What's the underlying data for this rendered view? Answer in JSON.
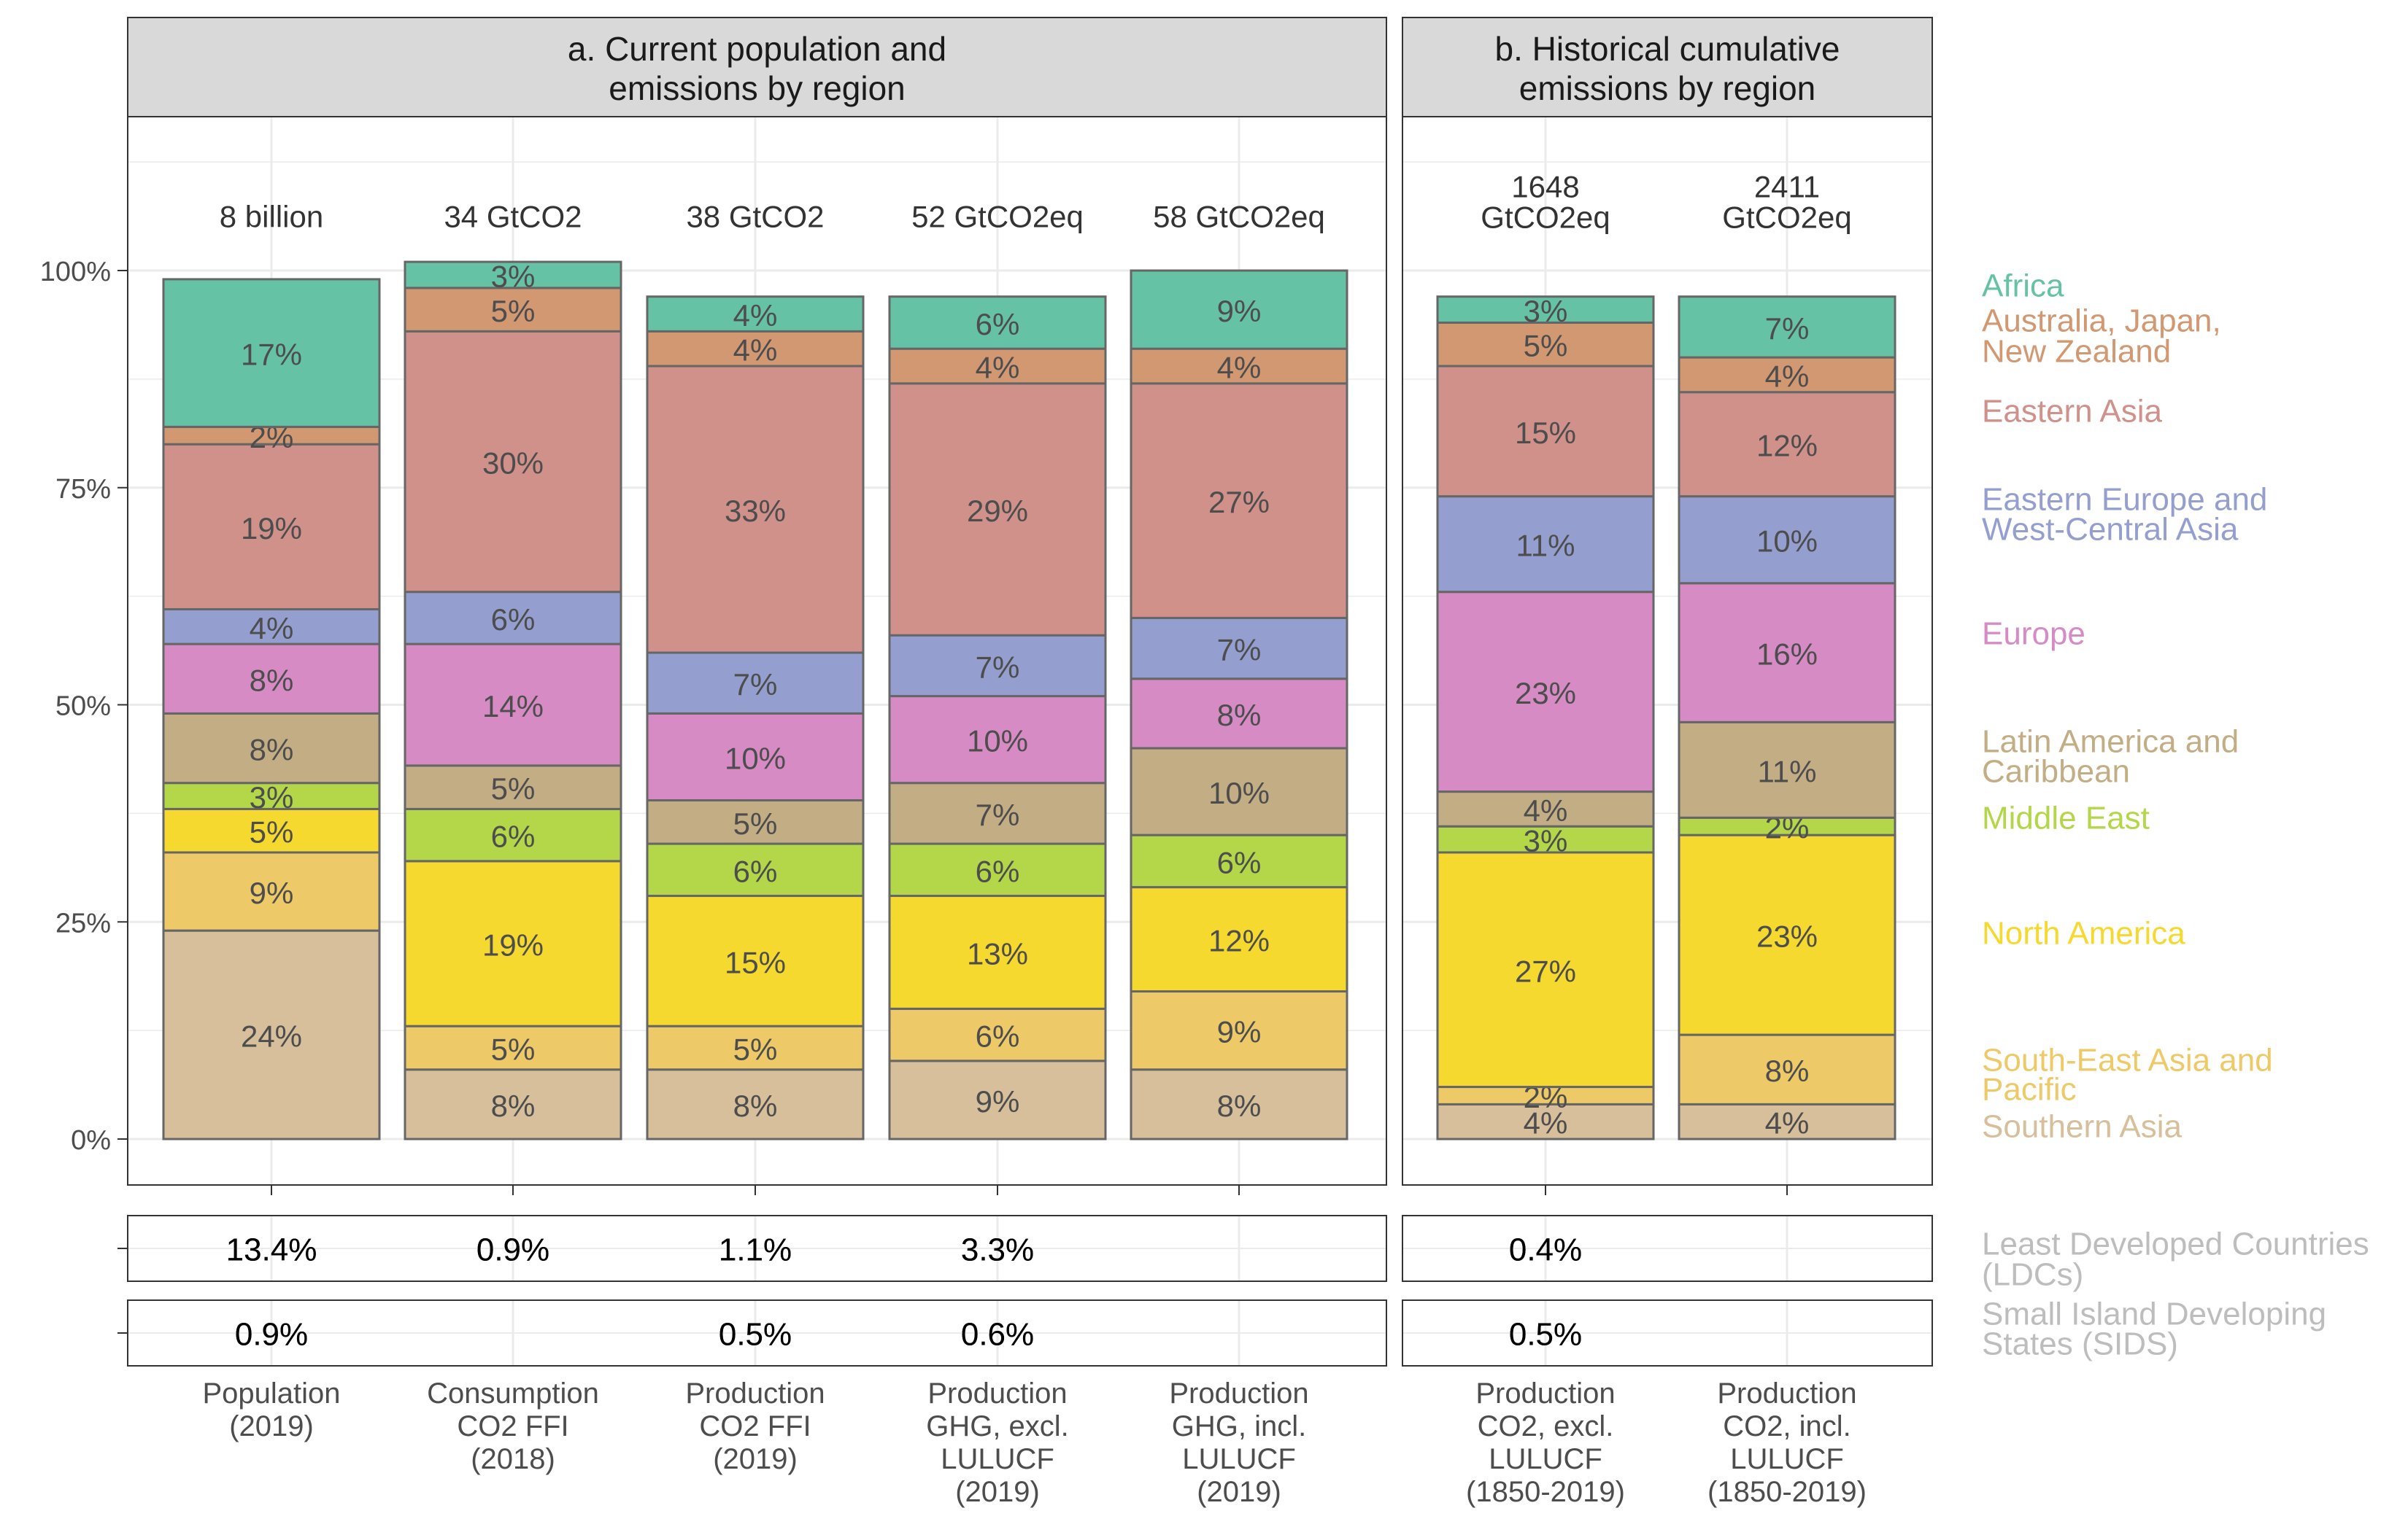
{
  "chart_data": {
    "type": "bar",
    "stacked": true,
    "percent_axis": {
      "ticks": [
        "0%",
        "25%",
        "50%",
        "75%",
        "100%"
      ],
      "ylim": [
        0,
        1
      ]
    },
    "grid": true,
    "legend_position": "right",
    "legend": [
      {
        "region": "Africa",
        "label_lines": [
          "Africa"
        ],
        "color": "#66c2a5"
      },
      {
        "region": "Australia, Japan, New Zealand",
        "label_lines": [
          "Australia, Japan,",
          "New Zealand"
        ],
        "color": "#d29872"
      },
      {
        "region": "Eastern Asia",
        "label_lines": [
          "Eastern Asia"
        ],
        "color": "#cf9189"
      },
      {
        "region": "Eastern Europe and West-Central Asia",
        "label_lines": [
          "Eastern Europe and",
          "West-Central Asia"
        ],
        "color": "#949fcf"
      },
      {
        "region": "Europe",
        "label_lines": [
          "Europe"
        ],
        "color": "#d78bc5"
      },
      {
        "region": "Latin America and Caribbean",
        "label_lines": [
          "Latin America and",
          "Caribbean"
        ],
        "color": "#c3ad84"
      },
      {
        "region": "Middle East",
        "label_lines": [
          "Middle East"
        ],
        "color": "#b3d749"
      },
      {
        "region": "North America",
        "label_lines": [
          "North America"
        ],
        "color": "#f5d92e"
      },
      {
        "region": "South-East Asia and Pacific",
        "label_lines": [
          "South-East Asia and",
          "Pacific"
        ],
        "color": "#edc967"
      },
      {
        "region": "Southern Asia",
        "label_lines": [
          "Southern Asia"
        ],
        "color": "#d6bf9a"
      }
    ],
    "extra_row_labels": [
      {
        "name": "Least Developed Countries (LDCs)",
        "label_lines": [
          "Least Developed Countries",
          "(LDCs)"
        ]
      },
      {
        "name": "Small Island Developing States (SIDS)",
        "label_lines": [
          "Small Island Developing",
          "States (SIDS)"
        ]
      }
    ],
    "panels": [
      {
        "title_lines": [
          "a. Current population and",
          "emissions by region"
        ],
        "bars": [
          {
            "category_lines": [
              "Population",
              "(2019)"
            ],
            "total_lines": [
              "8 billion"
            ],
            "segments": [
              {
                "region": "Southern Asia",
                "value": 24,
                "label": "24%"
              },
              {
                "region": "South-East Asia and Pacific",
                "value": 9,
                "label": "9%"
              },
              {
                "region": "North America",
                "value": 5,
                "label": "5%"
              },
              {
                "region": "Middle East",
                "value": 3,
                "label": "3%"
              },
              {
                "region": "Latin America and Caribbean",
                "value": 8,
                "label": "8%"
              },
              {
                "region": "Europe",
                "value": 8,
                "label": "8%"
              },
              {
                "region": "Eastern Europe and West-Central Asia",
                "value": 4,
                "label": "4%"
              },
              {
                "region": "Eastern Asia",
                "value": 19,
                "label": "19%"
              },
              {
                "region": "Australia, Japan, New Zealand",
                "value": 2,
                "label": "2%"
              },
              {
                "region": "Africa",
                "value": 17,
                "label": "17%"
              }
            ],
            "ldc": "13.4%",
            "sids": "0.9%"
          },
          {
            "category_lines": [
              "Consumption",
              "CO2 FFI",
              "(2018)"
            ],
            "total_lines": [
              "34 GtCO2"
            ],
            "segments": [
              {
                "region": "Southern Asia",
                "value": 8,
                "label": "8%"
              },
              {
                "region": "South-East Asia and Pacific",
                "value": 5,
                "label": "5%"
              },
              {
                "region": "North America",
                "value": 19,
                "label": "19%"
              },
              {
                "region": "Middle East",
                "value": 6,
                "label": "6%"
              },
              {
                "region": "Latin America and Caribbean",
                "value": 5,
                "label": "5%"
              },
              {
                "region": "Europe",
                "value": 14,
                "label": "14%"
              },
              {
                "region": "Eastern Europe and West-Central Asia",
                "value": 6,
                "label": "6%"
              },
              {
                "region": "Eastern Asia",
                "value": 30,
                "label": "30%"
              },
              {
                "region": "Australia, Japan, New Zealand",
                "value": 5,
                "label": "5%"
              },
              {
                "region": "Africa",
                "value": 3,
                "label": "3%"
              }
            ],
            "ldc": "0.9%",
            "sids": ""
          },
          {
            "category_lines": [
              "Production",
              "CO2 FFI",
              "(2019)"
            ],
            "total_lines": [
              "38 GtCO2"
            ],
            "segments": [
              {
                "region": "Southern Asia",
                "value": 8,
                "label": "8%"
              },
              {
                "region": "South-East Asia and Pacific",
                "value": 5,
                "label": "5%"
              },
              {
                "region": "North America",
                "value": 15,
                "label": "15%"
              },
              {
                "region": "Middle East",
                "value": 6,
                "label": "6%"
              },
              {
                "region": "Latin America and Caribbean",
                "value": 5,
                "label": "5%"
              },
              {
                "region": "Europe",
                "value": 10,
                "label": "10%"
              },
              {
                "region": "Eastern Europe and West-Central Asia",
                "value": 7,
                "label": "7%"
              },
              {
                "region": "Eastern Asia",
                "value": 33,
                "label": "33%"
              },
              {
                "region": "Australia, Japan, New Zealand",
                "value": 4,
                "label": "4%"
              },
              {
                "region": "Africa",
                "value": 4,
                "label": "4%"
              }
            ],
            "ldc": "1.1%",
            "sids": "0.5%"
          },
          {
            "category_lines": [
              "Production",
              "GHG, excl.",
              "LULUCF",
              "(2019)"
            ],
            "total_lines": [
              "52 GtCO2eq"
            ],
            "segments": [
              {
                "region": "Southern Asia",
                "value": 9,
                "label": "9%"
              },
              {
                "region": "South-East Asia and Pacific",
                "value": 6,
                "label": "6%"
              },
              {
                "region": "North America",
                "value": 13,
                "label": "13%"
              },
              {
                "region": "Middle East",
                "value": 6,
                "label": "6%"
              },
              {
                "region": "Latin America and Caribbean",
                "value": 7,
                "label": "7%"
              },
              {
                "region": "Europe",
                "value": 10,
                "label": "10%"
              },
              {
                "region": "Eastern Europe and West-Central Asia",
                "value": 7,
                "label": "7%"
              },
              {
                "region": "Eastern Asia",
                "value": 29,
                "label": "29%"
              },
              {
                "region": "Australia, Japan, New Zealand",
                "value": 4,
                "label": "4%"
              },
              {
                "region": "Africa",
                "value": 6,
                "label": "6%"
              }
            ],
            "ldc": "3.3%",
            "sids": "0.6%"
          },
          {
            "category_lines": [
              "Production",
              "GHG, incl.",
              "LULUCF",
              "(2019)"
            ],
            "total_lines": [
              "58 GtCO2eq"
            ],
            "segments": [
              {
                "region": "Southern Asia",
                "value": 8,
                "label": "8%"
              },
              {
                "region": "South-East Asia and Pacific",
                "value": 9,
                "label": "9%"
              },
              {
                "region": "North America",
                "value": 12,
                "label": "12%"
              },
              {
                "region": "Middle East",
                "value": 6,
                "label": "6%"
              },
              {
                "region": "Latin America and Caribbean",
                "value": 10,
                "label": "10%"
              },
              {
                "region": "Europe",
                "value": 8,
                "label": "8%"
              },
              {
                "region": "Eastern Europe and West-Central Asia",
                "value": 7,
                "label": "7%"
              },
              {
                "region": "Eastern Asia",
                "value": 27,
                "label": "27%"
              },
              {
                "region": "Australia, Japan, New Zealand",
                "value": 4,
                "label": "4%"
              },
              {
                "region": "Africa",
                "value": 9,
                "label": "9%"
              }
            ],
            "ldc": "",
            "sids": ""
          }
        ]
      },
      {
        "title_lines": [
          "b. Historical cumulative",
          "emissions by region"
        ],
        "bars": [
          {
            "category_lines": [
              "Production",
              "CO2, excl.",
              "LULUCF",
              "(1850-2019)"
            ],
            "total_lines": [
              "1648",
              "GtCO2eq"
            ],
            "segments": [
              {
                "region": "Southern Asia",
                "value": 4,
                "label": "4%"
              },
              {
                "region": "South-East Asia and Pacific",
                "value": 2,
                "label": "2%"
              },
              {
                "region": "North America",
                "value": 27,
                "label": "27%"
              },
              {
                "region": "Middle East",
                "value": 3,
                "label": "3%"
              },
              {
                "region": "Latin America and Caribbean",
                "value": 4,
                "label": "4%"
              },
              {
                "region": "Europe",
                "value": 23,
                "label": "23%"
              },
              {
                "region": "Eastern Europe and West-Central Asia",
                "value": 11,
                "label": "11%"
              },
              {
                "region": "Eastern Asia",
                "value": 15,
                "label": "15%"
              },
              {
                "region": "Australia, Japan, New Zealand",
                "value": 5,
                "label": "5%"
              },
              {
                "region": "Africa",
                "value": 3,
                "label": "3%"
              }
            ],
            "ldc": "0.4%",
            "sids": "0.5%"
          },
          {
            "category_lines": [
              "Production",
              "CO2, incl.",
              "LULUCF",
              "(1850-2019)"
            ],
            "total_lines": [
              "2411",
              "GtCO2eq"
            ],
            "segments": [
              {
                "region": "Southern Asia",
                "value": 4,
                "label": "4%"
              },
              {
                "region": "South-East Asia and Pacific",
                "value": 8,
                "label": "8%"
              },
              {
                "region": "North America",
                "value": 23,
                "label": "23%"
              },
              {
                "region": "Middle East",
                "value": 2,
                "label": "2%"
              },
              {
                "region": "Latin America and Caribbean",
                "value": 11,
                "label": "11%"
              },
              {
                "region": "Europe",
                "value": 16,
                "label": "16%"
              },
              {
                "region": "Eastern Europe and West-Central Asia",
                "value": 10,
                "label": "10%"
              },
              {
                "region": "Eastern Asia",
                "value": 12,
                "label": "12%"
              },
              {
                "region": "Australia, Japan, New Zealand",
                "value": 4,
                "label": "4%"
              },
              {
                "region": "Africa",
                "value": 7,
                "label": "7%"
              }
            ],
            "ldc": "",
            "sids": ""
          }
        ]
      }
    ]
  }
}
